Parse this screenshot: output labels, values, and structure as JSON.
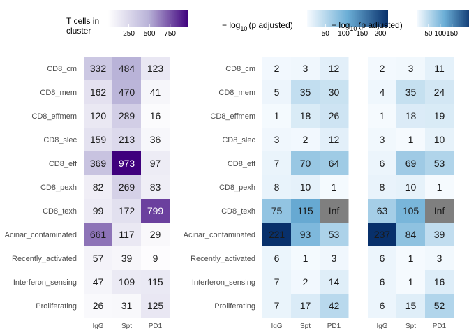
{
  "chart_data": [
    {
      "type": "heatmap",
      "rows": [
        "CD8_cm",
        "CD8_mem",
        "CD8_effmem",
        "CD8_slec",
        "CD8_eff",
        "CD8_pexh",
        "CD8_texh",
        "Acinar_contaminated",
        "Recently_activated",
        "Interferon_sensing",
        "Proliferating"
      ],
      "columns": [
        "IgG",
        "Spt",
        "PD1"
      ],
      "values": [
        [
          332,
          484,
          123
        ],
        [
          162,
          470,
          41
        ],
        [
          120,
          289,
          16
        ],
        [
          159,
          213,
          36
        ],
        [
          369,
          973,
          97
        ],
        [
          82,
          269,
          83
        ],
        [
          99,
          172,
          799
        ],
        [
          661,
          117,
          29
        ],
        [
          57,
          39,
          9
        ],
        [
          47,
          109,
          115
        ],
        [
          26,
          31,
          125
        ]
      ],
      "legend": {
        "title_line1": "T cells in",
        "title_line2": "cluster",
        "ticks": [
          250,
          500,
          750
        ]
      },
      "color_range": [
        0,
        973
      ],
      "colors": {
        "low": "#ffffff",
        "high": "#3f007d"
      }
    },
    {
      "type": "heatmap",
      "rows": [
        "CD8_cm",
        "CD8_mem",
        "CD8_effmem",
        "CD8_slec",
        "CD8_eff",
        "CD8_pexh",
        "CD8_texh",
        "Acinar_contaminated",
        "Recently_activated",
        "Interferon_sensing",
        "Proliferating"
      ],
      "columns": [
        "IgG",
        "Spt",
        "PD1"
      ],
      "values": [
        [
          "2",
          "3",
          "12"
        ],
        [
          "5",
          "35",
          "30"
        ],
        [
          "1",
          "18",
          "26"
        ],
        [
          "3",
          "2",
          "12"
        ],
        [
          "7",
          "70",
          "64"
        ],
        [
          "8",
          "10",
          "1"
        ],
        [
          "75",
          "115",
          "Inf"
        ],
        [
          "221",
          "93",
          "53"
        ],
        [
          "6",
          "1",
          "3"
        ],
        [
          "7",
          "2",
          "14"
        ],
        [
          "7",
          "17",
          "42"
        ]
      ],
      "legend": {
        "title_prefix": "− log",
        "title_sub": "10",
        "title_suffix": "(p adjusted)",
        "ticks": [
          50,
          100,
          150,
          200
        ]
      },
      "color_range": [
        0,
        221
      ],
      "colors": {
        "low": "#f7fbff",
        "high": "#08306b",
        "inf": "#7f7f7f"
      }
    },
    {
      "type": "heatmap",
      "rows": [
        "CD8_cm",
        "CD8_mem",
        "CD8_effmem",
        "CD8_slec",
        "CD8_eff",
        "CD8_pexh",
        "CD8_texh",
        "Acinar_contaminated",
        "Recently_activated",
        "Interferon_sensing",
        "Proliferating"
      ],
      "columns": [
        "IgG",
        "Spt",
        "PD1"
      ],
      "values": [
        [
          "2",
          "3",
          "11"
        ],
        [
          "4",
          "35",
          "24"
        ],
        [
          "1",
          "18",
          "19"
        ],
        [
          "3",
          "1",
          "10"
        ],
        [
          "6",
          "69",
          "53"
        ],
        [
          "8",
          "10",
          "1"
        ],
        [
          "63",
          "105",
          "Inf"
        ],
        [
          "237",
          "84",
          "39"
        ],
        [
          "6",
          "1",
          "3"
        ],
        [
          "6",
          "1",
          "16"
        ],
        [
          "6",
          "15",
          "52"
        ]
      ],
      "legend": {
        "title_prefix": "− log",
        "title_sub": "10",
        "title_suffix": "(p adjusted)",
        "ticks": [
          50,
          100,
          150
        ]
      },
      "color_range": [
        0,
        237
      ],
      "colors": {
        "low": "#f7fbff",
        "high": "#08306b",
        "inf": "#7f7f7f"
      }
    }
  ]
}
